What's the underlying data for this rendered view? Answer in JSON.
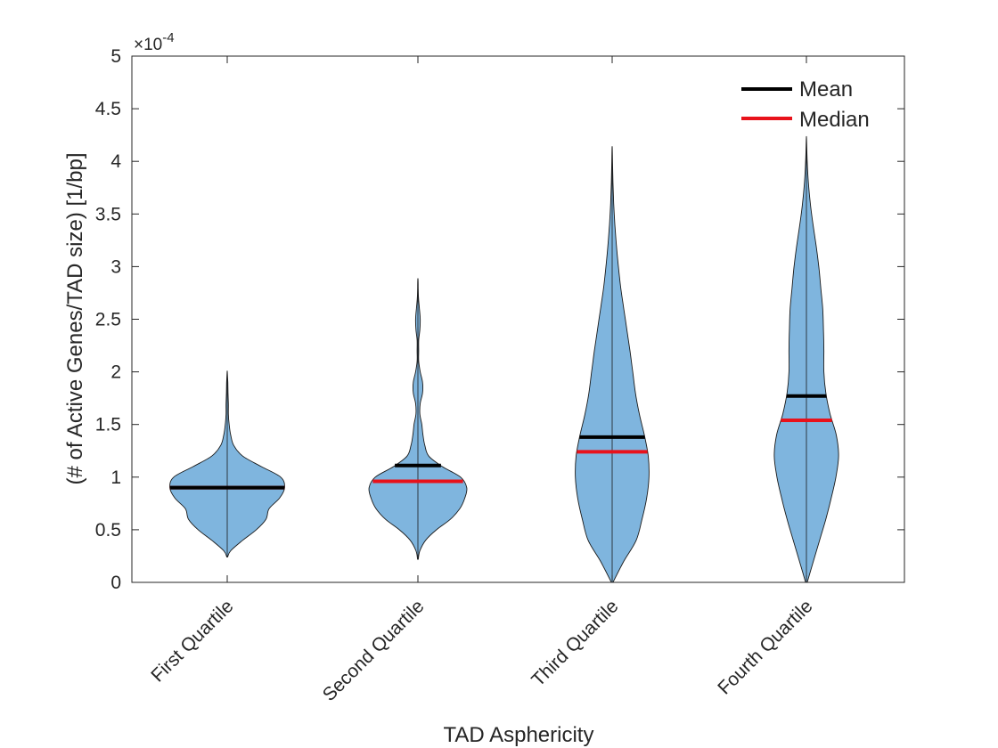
{
  "chart_data": {
    "type": "violin",
    "title": "",
    "xlabel": "TAD Asphericity",
    "ylabel": "(# of Active Genes/TAD size) [1/bp]",
    "y_exponent_label": "×10",
    "y_exponent_value": "-4",
    "ylim": [
      0,
      5
    ],
    "yticks": [
      "0",
      "0.5",
      "1",
      "1.5",
      "2",
      "2.5",
      "3",
      "3.5",
      "4",
      "4.5",
      "5"
    ],
    "categories": [
      "First Quartile",
      "Second Quartile",
      "Third Quartile",
      "Fourth Quartile"
    ],
    "legend": {
      "placement": "top-right",
      "entries": [
        {
          "label": "Mean",
          "color": "#000000"
        },
        {
          "label": "Median",
          "color": "#e8121b"
        }
      ]
    },
    "colors": {
      "violin_fill": "#7fb5de",
      "violin_edge": "#1a1a1a",
      "mean": "#000000",
      "median": "#e8121b"
    },
    "mean": [
      0.9,
      1.11,
      1.38,
      1.77
    ],
    "median": [
      0.9,
      0.96,
      1.24,
      1.54
    ],
    "max": [
      2.0,
      2.88,
      4.13,
      4.22
    ],
    "min": [
      0.24,
      0.22,
      0.0,
      0.0
    ],
    "violins": [
      {
        "category": "First Quartile",
        "profile": [
          [
            0.24,
            1
          ],
          [
            0.3,
            9
          ],
          [
            0.4,
            40
          ],
          [
            0.5,
            75
          ],
          [
            0.6,
            100
          ],
          [
            0.7,
            108
          ],
          [
            0.8,
            135
          ],
          [
            0.9,
            148
          ],
          [
            1.0,
            138
          ],
          [
            1.1,
            88
          ],
          [
            1.2,
            40
          ],
          [
            1.3,
            17
          ],
          [
            1.4,
            9
          ],
          [
            1.5,
            5
          ],
          [
            1.6,
            3
          ],
          [
            1.7,
            3
          ],
          [
            1.8,
            2
          ],
          [
            1.9,
            1.5
          ],
          [
            2.0,
            0.3
          ]
        ]
      },
      {
        "category": "Second Quartile",
        "profile": [
          [
            0.22,
            1
          ],
          [
            0.3,
            5
          ],
          [
            0.4,
            20
          ],
          [
            0.5,
            48
          ],
          [
            0.6,
            84
          ],
          [
            0.7,
            108
          ],
          [
            0.8,
            121
          ],
          [
            0.9,
            126
          ],
          [
            1.0,
            110
          ],
          [
            1.1,
            63
          ],
          [
            1.2,
            28
          ],
          [
            1.3,
            18
          ],
          [
            1.4,
            13
          ],
          [
            1.5,
            10
          ],
          [
            1.6,
            5
          ],
          [
            1.7,
            6
          ],
          [
            1.8,
            12
          ],
          [
            1.9,
            12
          ],
          [
            2.0,
            6
          ],
          [
            2.1,
            2
          ],
          [
            2.2,
            2
          ],
          [
            2.3,
            2
          ],
          [
            2.4,
            5
          ],
          [
            2.5,
            6
          ],
          [
            2.6,
            4
          ],
          [
            2.7,
            1.5
          ],
          [
            2.8,
            0.8
          ],
          [
            2.88,
            0.3
          ]
        ]
      },
      {
        "category": "Third Quartile",
        "profile": [
          [
            0.0,
            2
          ],
          [
            0.2,
            30
          ],
          [
            0.4,
            62
          ],
          [
            0.6,
            77
          ],
          [
            0.8,
            89
          ],
          [
            1.0,
            95
          ],
          [
            1.2,
            93
          ],
          [
            1.4,
            83
          ],
          [
            1.6,
            70
          ],
          [
            1.8,
            60
          ],
          [
            2.0,
            53
          ],
          [
            2.2,
            46
          ],
          [
            2.4,
            38
          ],
          [
            2.6,
            30
          ],
          [
            2.8,
            22
          ],
          [
            3.0,
            16
          ],
          [
            3.2,
            11
          ],
          [
            3.4,
            7
          ],
          [
            3.6,
            4
          ],
          [
            3.8,
            2
          ],
          [
            4.0,
            1
          ],
          [
            4.13,
            0.3
          ]
        ]
      },
      {
        "category": "Fourth Quartile",
        "profile": [
          [
            0.0,
            2
          ],
          [
            0.2,
            18
          ],
          [
            0.4,
            34
          ],
          [
            0.6,
            50
          ],
          [
            0.8,
            64
          ],
          [
            1.0,
            76
          ],
          [
            1.2,
            83
          ],
          [
            1.4,
            77
          ],
          [
            1.6,
            61
          ],
          [
            1.8,
            50
          ],
          [
            2.0,
            45
          ],
          [
            2.2,
            45
          ],
          [
            2.4,
            44
          ],
          [
            2.6,
            42
          ],
          [
            2.8,
            37
          ],
          [
            3.0,
            32
          ],
          [
            3.2,
            25
          ],
          [
            3.4,
            17
          ],
          [
            3.6,
            10
          ],
          [
            3.8,
            5
          ],
          [
            4.0,
            2
          ],
          [
            4.22,
            0.3
          ]
        ]
      }
    ]
  }
}
